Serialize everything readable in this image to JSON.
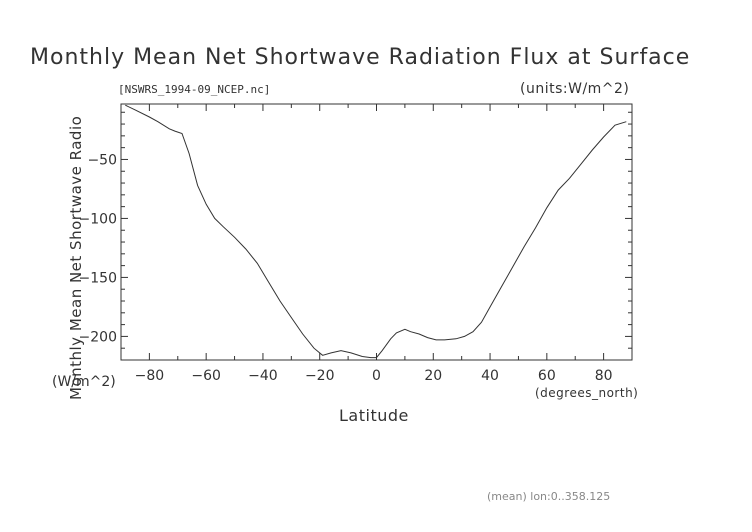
{
  "header": {
    "title": "Monthly Mean Net Shortwave Radiation Flux at Surface",
    "subtitle": "[NSWRS_1994-09_NCEP.nc]",
    "units": "(units:W/m^2)"
  },
  "axes": {
    "ylabel": "Monthly Mean Net Shortwave Radio",
    "yunits": "(W/m^2)",
    "xlabel": "Latitude",
    "xunits": "(degrees_north)"
  },
  "footer": "(mean) lon:0..358.125",
  "chart_data": {
    "type": "line",
    "title": "Monthly Mean Net Shortwave Radiation Flux at Surface",
    "xlabel": "Latitude",
    "ylabel": "Monthly Mean Net Shortwave Radio",
    "xlim": [
      -90,
      90
    ],
    "ylim": [
      -220,
      -3
    ],
    "xticks": [
      -80,
      -60,
      -40,
      -20,
      0,
      20,
      40,
      60,
      80
    ],
    "yticks": [
      -50,
      -100,
      -150,
      -200
    ],
    "grid": false,
    "line_color": "#333333",
    "x": [
      -88.5,
      -85,
      -80,
      -77,
      -73,
      -71,
      -68.5,
      -66,
      -63,
      -60,
      -57,
      -54,
      -50,
      -46,
      -42,
      -38,
      -34,
      -30,
      -26,
      -22,
      -19,
      -16,
      -12.5,
      -9,
      -5,
      -2,
      0,
      2,
      5,
      7,
      10,
      12,
      15,
      18,
      21,
      24,
      28,
      31,
      34,
      37,
      40,
      44,
      48,
      52,
      56,
      60,
      64,
      68,
      72,
      76,
      80,
      84,
      88
    ],
    "y": [
      -4,
      -8,
      -14,
      -18,
      -24,
      -26,
      -28,
      -45,
      -72,
      -88,
      -100,
      -107,
      -116,
      -126,
      -138,
      -154,
      -170,
      -184,
      -198,
      -210,
      -216,
      -214,
      -212,
      -214,
      -217,
      -218,
      -218,
      -212,
      -202,
      -197,
      -194,
      -196,
      -198,
      -201,
      -203,
      -203,
      -202,
      -200,
      -196,
      -188,
      -175,
      -158,
      -141,
      -124,
      -108,
      -91,
      -76,
      -66,
      -54,
      -42,
      -31,
      -21,
      -18
    ]
  }
}
